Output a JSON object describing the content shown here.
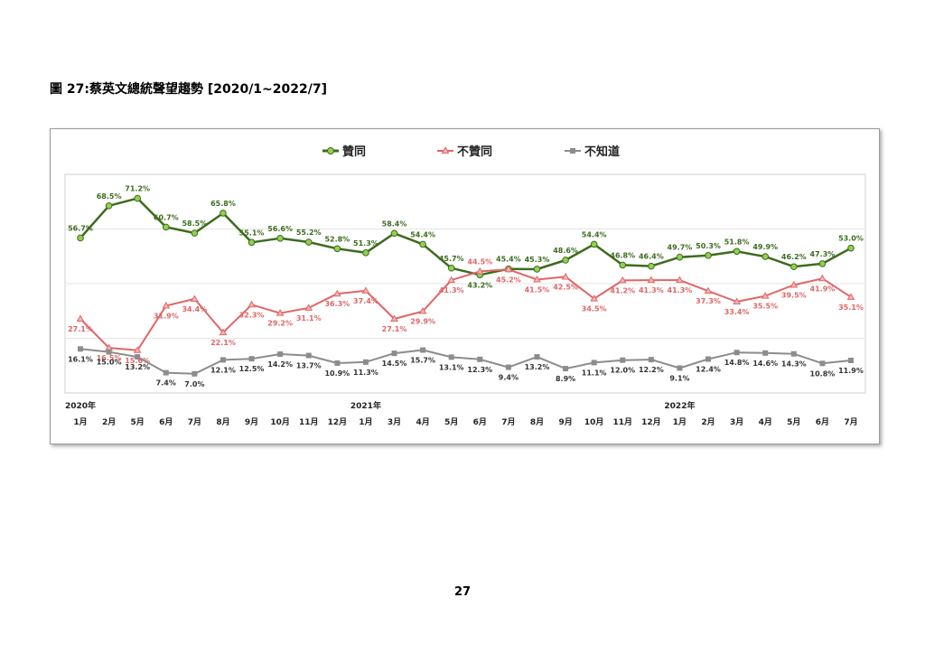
{
  "figure": {
    "title": "圖 27:蔡英文總統聲望趨勢  [2020/1~2022/7]",
    "page_number": "27"
  },
  "colors": {
    "approve": "#3d6b1f",
    "approve_marker": "#92d050",
    "disapprove": "#e06666",
    "disapprove_marker": "#f4b7b7",
    "unknown": "#8c8c8c",
    "unknown_marker": "#8c8c8c"
  },
  "chart_data": {
    "type": "line",
    "categories": [
      "1月",
      "2月",
      "5月",
      "6月",
      "7月",
      "8月",
      "9月",
      "10月",
      "11月",
      "12月",
      "1月",
      "3月",
      "4月",
      "5月",
      "6月",
      "7月",
      "8月",
      "9月",
      "10月",
      "11月",
      "12月",
      "1月",
      "2月",
      "3月",
      "4月",
      "5月",
      "6月",
      "7月"
    ],
    "year_labels": [
      {
        "index": 0,
        "label": "2020年"
      },
      {
        "index": 10,
        "label": "2021年"
      },
      {
        "index": 21,
        "label": "2022年"
      }
    ],
    "series": [
      {
        "name": "贊同",
        "key": "approve",
        "values": [
          56.7,
          68.5,
          71.2,
          60.7,
          58.5,
          65.8,
          55.1,
          56.6,
          55.2,
          52.8,
          51.3,
          58.4,
          54.4,
          45.7,
          43.2,
          45.4,
          45.3,
          48.6,
          54.4,
          46.8,
          46.4,
          49.7,
          50.3,
          51.8,
          49.9,
          46.2,
          47.3,
          53.0
        ]
      },
      {
        "name": "不贊同",
        "key": "disapprove",
        "values": [
          27.1,
          16.5,
          15.6,
          31.9,
          34.4,
          22.1,
          32.3,
          29.2,
          31.1,
          36.3,
          37.4,
          27.1,
          29.9,
          41.3,
          44.5,
          45.2,
          41.5,
          42.5,
          34.5,
          41.2,
          41.3,
          41.3,
          37.3,
          33.4,
          35.5,
          39.5,
          41.9,
          35.1
        ]
      },
      {
        "name": "不知道",
        "key": "unknown",
        "values": [
          16.1,
          15.0,
          13.2,
          7.4,
          7.0,
          12.1,
          12.5,
          14.2,
          13.7,
          10.9,
          11.3,
          14.5,
          15.7,
          13.1,
          12.3,
          9.4,
          13.2,
          8.9,
          11.1,
          12.0,
          12.2,
          9.1,
          12.4,
          14.8,
          14.6,
          14.3,
          10.8,
          11.9
        ]
      }
    ],
    "ylim": [
      0,
      80
    ],
    "grid": "horizontal",
    "legend_position": "top"
  }
}
